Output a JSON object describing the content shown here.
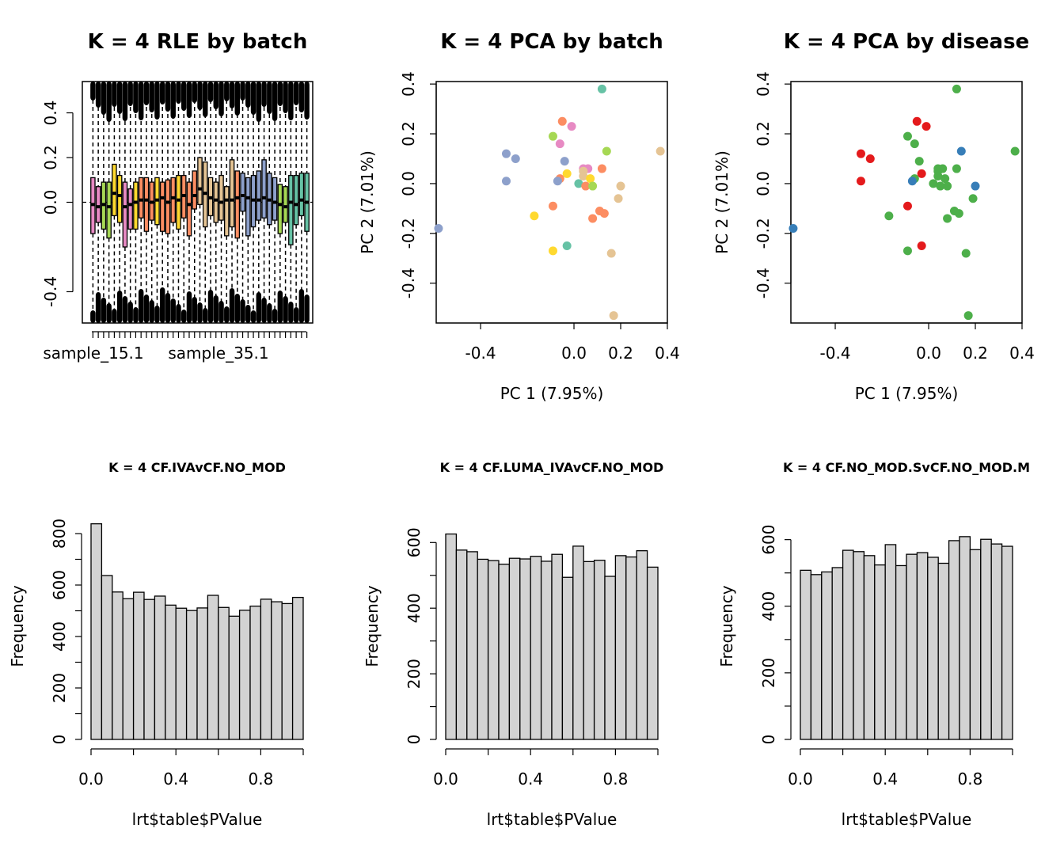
{
  "chart_data": [
    {
      "type": "boxplot",
      "title": "K = 4 RLE by batch",
      "xlabel": "",
      "ylabel": "",
      "y_ticks": [
        -0.4,
        0.0,
        0.2,
        0.4
      ],
      "ylim": [
        -0.54,
        0.54
      ],
      "x_tick_labels": [
        "sample_15.1",
        "sample_35.1"
      ],
      "boxes": [
        {
          "color": "#E78AC3",
          "median": -0.01,
          "q1": -0.14,
          "q3": 0.11
        },
        {
          "color": "#E78AC3",
          "median": -0.02,
          "q1": -0.09,
          "q3": 0.07
        },
        {
          "color": "#A6D854",
          "median": -0.01,
          "q1": -0.12,
          "q3": 0.09
        },
        {
          "color": "#A6D854",
          "median": -0.02,
          "q1": -0.16,
          "q3": 0.09
        },
        {
          "color": "#FFD92F",
          "median": 0.04,
          "q1": -0.06,
          "q3": 0.17
        },
        {
          "color": "#FFD92F",
          "median": 0.03,
          "q1": -0.09,
          "q3": 0.12
        },
        {
          "color": "#E78AC3",
          "median": -0.02,
          "q1": -0.2,
          "q3": 0.09
        },
        {
          "color": "#E78AC3",
          "median": -0.01,
          "q1": -0.12,
          "q3": 0.06
        },
        {
          "color": "#FFD92F",
          "median": 0.0,
          "q1": -0.12,
          "q3": 0.09
        },
        {
          "color": "#FC8D62",
          "median": 0.01,
          "q1": -0.07,
          "q3": 0.11
        },
        {
          "color": "#FC8D62",
          "median": 0.01,
          "q1": -0.13,
          "q3": 0.11
        },
        {
          "color": "#FC8D62",
          "median": 0.0,
          "q1": -0.08,
          "q3": 0.09
        },
        {
          "color": "#FFD92F",
          "median": 0.01,
          "q1": -0.1,
          "q3": 0.11
        },
        {
          "color": "#FC8D62",
          "median": 0.02,
          "q1": -0.13,
          "q3": 0.09
        },
        {
          "color": "#FC8D62",
          "median": 0.0,
          "q1": -0.14,
          "q3": 0.1
        },
        {
          "color": "#FC8D62",
          "median": 0.02,
          "q1": -0.09,
          "q3": 0.11
        },
        {
          "color": "#FFD92F",
          "median": 0.01,
          "q1": -0.12,
          "q3": 0.12
        },
        {
          "color": "#FC8D62",
          "median": 0.03,
          "q1": -0.07,
          "q3": 0.12
        },
        {
          "color": "#FC8D62",
          "median": -0.01,
          "q1": -0.15,
          "q3": 0.09
        },
        {
          "color": "#FC8D62",
          "median": 0.03,
          "q1": -0.03,
          "q3": 0.14
        },
        {
          "color": "#E5C494",
          "median": 0.06,
          "q1": -0.01,
          "q3": 0.2
        },
        {
          "color": "#E5C494",
          "median": 0.04,
          "q1": -0.11,
          "q3": 0.18
        },
        {
          "color": "#E5C494",
          "median": 0.02,
          "q1": -0.06,
          "q3": 0.11
        },
        {
          "color": "#E5C494",
          "median": 0.01,
          "q1": -0.09,
          "q3": 0.09
        },
        {
          "color": "#E5C494",
          "median": 0.0,
          "q1": -0.08,
          "q3": 0.12
        },
        {
          "color": "#E5C494",
          "median": 0.01,
          "q1": -0.15,
          "q3": 0.07
        },
        {
          "color": "#E5C494",
          "median": 0.01,
          "q1": -0.11,
          "q3": 0.19
        },
        {
          "color": "#FC8D62",
          "median": 0.02,
          "q1": -0.16,
          "q3": 0.14
        },
        {
          "color": "#8DA0CB",
          "median": 0.03,
          "q1": -0.04,
          "q3": 0.13
        },
        {
          "color": "#8DA0CB",
          "median": 0.02,
          "q1": -0.15,
          "q3": 0.11
        },
        {
          "color": "#8DA0CB",
          "median": 0.01,
          "q1": -0.11,
          "q3": 0.12
        },
        {
          "color": "#8DA0CB",
          "median": 0.01,
          "q1": -0.08,
          "q3": 0.14
        },
        {
          "color": "#8DA0CB",
          "median": 0.02,
          "q1": -0.07,
          "q3": 0.19
        },
        {
          "color": "#8DA0CB",
          "median": 0.01,
          "q1": -0.1,
          "q3": 0.13
        },
        {
          "color": "#8DA0CB",
          "median": 0.0,
          "q1": -0.08,
          "q3": 0.11
        },
        {
          "color": "#A6D854",
          "median": -0.01,
          "q1": -0.14,
          "q3": 0.08
        },
        {
          "color": "#A6D854",
          "median": -0.02,
          "q1": -0.09,
          "q3": 0.07
        },
        {
          "color": "#66C2A5",
          "median": 0.0,
          "q1": -0.19,
          "q3": 0.12
        },
        {
          "color": "#66C2A5",
          "median": -0.01,
          "q1": -0.1,
          "q3": 0.12
        },
        {
          "color": "#66C2A5",
          "median": 0.01,
          "q1": -0.06,
          "q3": 0.13
        },
        {
          "color": "#66C2A5",
          "median": 0.0,
          "q1": -0.13,
          "q3": 0.13
        }
      ]
    },
    {
      "type": "scatter",
      "title": "K = 4 PCA by batch",
      "xlabel": "PC 1 (7.95%)",
      "ylabel": "PC 2 (7.01%)",
      "x_ticks": [
        -0.4,
        0.0,
        0.2,
        0.4
      ],
      "y_ticks": [
        -0.4,
        -0.2,
        0.0,
        0.2,
        0.4
      ],
      "xlim": [
        -0.59,
        0.4
      ],
      "ylim": [
        -0.56,
        0.41
      ],
      "points": [
        {
          "x": 0.12,
          "y": 0.38,
          "color": "#66C2A5"
        },
        {
          "x": -0.05,
          "y": 0.25,
          "color": "#FC8D62"
        },
        {
          "x": -0.01,
          "y": 0.23,
          "color": "#E78AC3"
        },
        {
          "x": -0.09,
          "y": 0.19,
          "color": "#A6D854"
        },
        {
          "x": -0.06,
          "y": 0.16,
          "color": "#E78AC3"
        },
        {
          "x": 0.14,
          "y": 0.13,
          "color": "#A6D854"
        },
        {
          "x": 0.37,
          "y": 0.13,
          "color": "#E5C494"
        },
        {
          "x": -0.29,
          "y": 0.12,
          "color": "#8DA0CB"
        },
        {
          "x": -0.25,
          "y": 0.1,
          "color": "#8DA0CB"
        },
        {
          "x": -0.04,
          "y": 0.09,
          "color": "#8DA0CB"
        },
        {
          "x": 0.04,
          "y": 0.06,
          "color": "#E78AC3"
        },
        {
          "x": 0.06,
          "y": 0.06,
          "color": "#E78AC3"
        },
        {
          "x": 0.12,
          "y": 0.06,
          "color": "#FC8D62"
        },
        {
          "x": 0.04,
          "y": 0.05,
          "color": "#E5C494"
        },
        {
          "x": -0.03,
          "y": 0.04,
          "color": "#FFD92F"
        },
        {
          "x": 0.04,
          "y": 0.03,
          "color": "#E5C494"
        },
        {
          "x": 0.07,
          "y": 0.02,
          "color": "#FFD92F"
        },
        {
          "x": -0.06,
          "y": 0.02,
          "color": "#FC8D62"
        },
        {
          "x": -0.07,
          "y": 0.01,
          "color": "#8DA0CB"
        },
        {
          "x": -0.29,
          "y": 0.01,
          "color": "#8DA0CB"
        },
        {
          "x": 0.02,
          "y": 0.0,
          "color": "#66C2A5"
        },
        {
          "x": 0.05,
          "y": -0.01,
          "color": "#FC8D62"
        },
        {
          "x": 0.08,
          "y": -0.01,
          "color": "#A6D854"
        },
        {
          "x": 0.2,
          "y": -0.01,
          "color": "#E5C494"
        },
        {
          "x": 0.19,
          "y": -0.06,
          "color": "#E5C494"
        },
        {
          "x": -0.09,
          "y": -0.09,
          "color": "#FC8D62"
        },
        {
          "x": 0.11,
          "y": -0.11,
          "color": "#FC8D62"
        },
        {
          "x": 0.13,
          "y": -0.12,
          "color": "#FC8D62"
        },
        {
          "x": -0.17,
          "y": -0.13,
          "color": "#FFD92F"
        },
        {
          "x": 0.08,
          "y": -0.14,
          "color": "#FC8D62"
        },
        {
          "x": -0.58,
          "y": -0.18,
          "color": "#8DA0CB"
        },
        {
          "x": -0.03,
          "y": -0.25,
          "color": "#66C2A5"
        },
        {
          "x": -0.09,
          "y": -0.27,
          "color": "#FFD92F"
        },
        {
          "x": 0.16,
          "y": -0.28,
          "color": "#E5C494"
        },
        {
          "x": 0.17,
          "y": -0.53,
          "color": "#E5C494"
        }
      ]
    },
    {
      "type": "scatter",
      "title": "K = 4 PCA by disease",
      "xlabel": "PC 1 (7.95%)",
      "ylabel": "PC 2 (7.01%)",
      "x_ticks": [
        -0.4,
        0.0,
        0.2,
        0.4
      ],
      "y_ticks": [
        -0.4,
        -0.2,
        0.0,
        0.2,
        0.4
      ],
      "xlim": [
        -0.59,
        0.4
      ],
      "ylim": [
        -0.56,
        0.41
      ],
      "points": [
        {
          "x": 0.12,
          "y": 0.38,
          "color": "#4DAF4A"
        },
        {
          "x": -0.05,
          "y": 0.25,
          "color": "#E41A1C"
        },
        {
          "x": -0.01,
          "y": 0.23,
          "color": "#E41A1C"
        },
        {
          "x": -0.09,
          "y": 0.19,
          "color": "#4DAF4A"
        },
        {
          "x": -0.06,
          "y": 0.16,
          "color": "#4DAF4A"
        },
        {
          "x": 0.14,
          "y": 0.13,
          "color": "#377EB8"
        },
        {
          "x": 0.37,
          "y": 0.13,
          "color": "#4DAF4A"
        },
        {
          "x": -0.29,
          "y": 0.12,
          "color": "#E41A1C"
        },
        {
          "x": -0.25,
          "y": 0.1,
          "color": "#E41A1C"
        },
        {
          "x": -0.04,
          "y": 0.09,
          "color": "#4DAF4A"
        },
        {
          "x": 0.04,
          "y": 0.06,
          "color": "#4DAF4A"
        },
        {
          "x": 0.06,
          "y": 0.06,
          "color": "#4DAF4A"
        },
        {
          "x": 0.12,
          "y": 0.06,
          "color": "#4DAF4A"
        },
        {
          "x": 0.04,
          "y": 0.05,
          "color": "#4DAF4A"
        },
        {
          "x": -0.03,
          "y": 0.04,
          "color": "#E41A1C"
        },
        {
          "x": 0.04,
          "y": 0.03,
          "color": "#4DAF4A"
        },
        {
          "x": 0.07,
          "y": 0.02,
          "color": "#4DAF4A"
        },
        {
          "x": -0.06,
          "y": 0.02,
          "color": "#4DAF4A"
        },
        {
          "x": -0.07,
          "y": 0.01,
          "color": "#377EB8"
        },
        {
          "x": -0.29,
          "y": 0.01,
          "color": "#E41A1C"
        },
        {
          "x": 0.02,
          "y": 0.0,
          "color": "#4DAF4A"
        },
        {
          "x": 0.05,
          "y": -0.01,
          "color": "#4DAF4A"
        },
        {
          "x": 0.08,
          "y": -0.01,
          "color": "#4DAF4A"
        },
        {
          "x": 0.2,
          "y": -0.01,
          "color": "#377EB8"
        },
        {
          "x": 0.19,
          "y": -0.06,
          "color": "#4DAF4A"
        },
        {
          "x": -0.09,
          "y": -0.09,
          "color": "#E41A1C"
        },
        {
          "x": 0.11,
          "y": -0.11,
          "color": "#4DAF4A"
        },
        {
          "x": 0.13,
          "y": -0.12,
          "color": "#4DAF4A"
        },
        {
          "x": -0.17,
          "y": -0.13,
          "color": "#4DAF4A"
        },
        {
          "x": 0.08,
          "y": -0.14,
          "color": "#4DAF4A"
        },
        {
          "x": -0.58,
          "y": -0.18,
          "color": "#377EB8"
        },
        {
          "x": -0.03,
          "y": -0.25,
          "color": "#E41A1C"
        },
        {
          "x": -0.09,
          "y": -0.27,
          "color": "#4DAF4A"
        },
        {
          "x": 0.16,
          "y": -0.28,
          "color": "#4DAF4A"
        },
        {
          "x": 0.17,
          "y": -0.53,
          "color": "#4DAF4A"
        }
      ]
    },
    {
      "type": "bar",
      "subtype": "histogram",
      "title": "K = 4 CF.IVAvCF.NO_MOD",
      "xlabel": "lrt$table$PValue",
      "ylabel": "Frequency",
      "bin_edges": [
        0.0,
        0.05,
        0.1,
        0.15,
        0.2,
        0.25,
        0.3,
        0.35,
        0.4,
        0.45,
        0.5,
        0.55,
        0.6,
        0.65,
        0.7,
        0.75,
        0.8,
        0.85,
        0.9,
        0.95,
        1.0
      ],
      "values": [
        838,
        637,
        573,
        547,
        572,
        544,
        557,
        522,
        510,
        501,
        511,
        560,
        513,
        479,
        502,
        518,
        545,
        535,
        528,
        552
      ],
      "x_ticks": [
        0.0,
        0.4,
        0.8
      ],
      "y_ticks": [
        0,
        200,
        400,
        600,
        800
      ],
      "ylim": [
        0,
        880
      ]
    },
    {
      "type": "bar",
      "subtype": "histogram",
      "title": "K = 4 CF.LUMA_IVAvCF.NO_MOD",
      "xlabel": "lrt$table$PValue",
      "ylabel": "Frequency",
      "bin_edges": [
        0.0,
        0.05,
        0.1,
        0.15,
        0.2,
        0.25,
        0.3,
        0.35,
        0.4,
        0.45,
        0.5,
        0.55,
        0.6,
        0.65,
        0.7,
        0.75,
        0.8,
        0.85,
        0.9,
        0.95,
        1.0
      ],
      "values": [
        626,
        577,
        572,
        549,
        545,
        534,
        552,
        550,
        558,
        543,
        564,
        494,
        589,
        542,
        546,
        497,
        560,
        556,
        575,
        525
      ],
      "x_ticks": [
        0.0,
        0.4,
        0.8
      ],
      "y_ticks": [
        0,
        200,
        400,
        600
      ],
      "ylim": [
        0,
        690
      ]
    },
    {
      "type": "bar",
      "subtype": "histogram",
      "title": "K = 4 CF.NO_MOD.SvCF.NO_MOD.M",
      "xlabel": "lrt$table$PValue",
      "ylabel": "Frequency",
      "bin_edges": [
        0.0,
        0.05,
        0.1,
        0.15,
        0.2,
        0.25,
        0.3,
        0.35,
        0.4,
        0.45,
        0.5,
        0.55,
        0.6,
        0.65,
        0.7,
        0.75,
        0.8,
        0.85,
        0.9,
        0.95,
        1.0
      ],
      "values": [
        508,
        495,
        503,
        516,
        568,
        564,
        552,
        524,
        585,
        522,
        556,
        561,
        547,
        529,
        597,
        609,
        570,
        601,
        587,
        580
      ],
      "x_ticks": [
        0.0,
        0.4,
        0.8
      ],
      "y_ticks": [
        0,
        200,
        400,
        600
      ],
      "ylim": [
        0,
        680
      ]
    }
  ]
}
